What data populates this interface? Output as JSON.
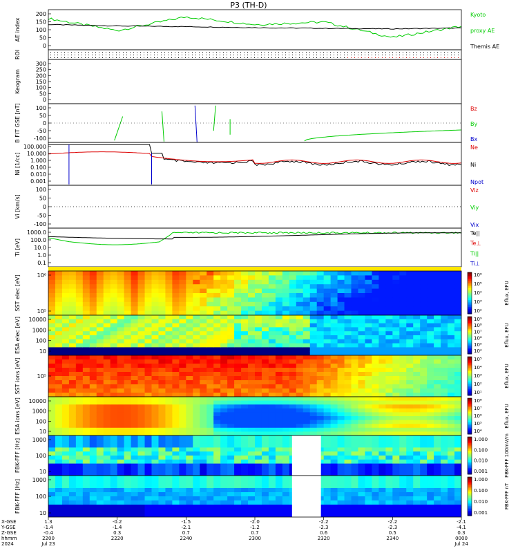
{
  "title": "P3 (TH-D)",
  "colors": {
    "black": "#000000",
    "green": "#00cc00",
    "red": "#dd0000",
    "blue": "#0000cc"
  },
  "panels": [
    {
      "id": "ae",
      "ylabel": "AE index",
      "yticks": [
        "200",
        "150",
        "100",
        "50",
        "0"
      ],
      "legend": [
        {
          "text": "Kyoto",
          "color": "#00cc00"
        },
        {
          "text": "proxy AE",
          "color": "#00cc00"
        },
        {
          "text": "Themis AE",
          "color": "#000000"
        }
      ]
    },
    {
      "id": "roi",
      "ylabel": "ROI",
      "yticks": [],
      "legend": []
    },
    {
      "id": "keogram",
      "ylabel": "Keogram",
      "yticks": [
        "300",
        "250",
        "200",
        "150",
        "100",
        "50",
        "0"
      ],
      "legend": []
    },
    {
      "id": "bfit",
      "ylabel": "B FIT GSE [nT]",
      "yticks": [
        "100",
        "50",
        "0",
        "-50",
        "-100"
      ],
      "legend": [
        {
          "text": "Bz",
          "color": "#dd0000"
        },
        {
          "text": "By",
          "color": "#00cc00"
        },
        {
          "text": "Bx",
          "color": "#0000cc"
        }
      ]
    },
    {
      "id": "ni",
      "ylabel": "Ni [1/cc]",
      "yticks": [
        "100.000",
        "10.000",
        "1.000",
        "0.100",
        "0.010",
        "0.001"
      ],
      "legend": [
        {
          "text": "Ne",
          "color": "#dd0000"
        },
        {
          "text": "Ni",
          "color": "#000000"
        },
        {
          "text": "Npot",
          "color": "#0000cc"
        }
      ]
    },
    {
      "id": "vi",
      "ylabel": "Vi [km/s]",
      "yticks": [
        "100",
        "50",
        "0",
        "-50",
        "-100"
      ],
      "legend": [
        {
          "text": "Viz",
          "color": "#dd0000"
        },
        {
          "text": "Viy",
          "color": "#00cc00"
        },
        {
          "text": "Vix",
          "color": "#0000cc"
        }
      ]
    },
    {
      "id": "ti",
      "ylabel": "Ti [eV]",
      "yticks": [
        "1000.0",
        "100.0",
        "10.0",
        "1.0",
        "0.1"
      ],
      "legend": [
        {
          "text": "Te||",
          "color": "#000000"
        },
        {
          "text": "Te⊥",
          "color": "#dd0000"
        },
        {
          "text": "Ti||",
          "color": "#00cc00"
        },
        {
          "text": "Ti⊥",
          "color": "#0000cc"
        }
      ]
    },
    {
      "id": "sst_e",
      "ylabel": "SST elec [eV]",
      "yticks": [
        "10⁶",
        "10⁵"
      ],
      "cbar_label": "Eflux, EFU",
      "cbar_ticks": [
        "10⁶",
        "10⁵",
        "10⁴",
        "10³",
        "10²"
      ]
    },
    {
      "id": "esa_e",
      "ylabel": "ESA elec [eV]",
      "yticks": [
        "10000",
        "1000",
        "100",
        "10"
      ],
      "cbar_label": "Eflux, EFU",
      "cbar_ticks": [
        "10⁹",
        "10⁸",
        "10⁷",
        "10⁶",
        "10⁵",
        "10⁴"
      ]
    },
    {
      "id": "sst_i",
      "ylabel": "SST ions [eV]",
      "yticks": [
        "10⁵"
      ],
      "cbar_label": "Eflux, EFU",
      "cbar_ticks": [
        "10⁵",
        "10⁴",
        "10³",
        "10²",
        "10¹"
      ]
    },
    {
      "id": "esa_i",
      "ylabel": "ESA ions [eV]",
      "yticks": [
        "10000",
        "1000",
        "100",
        "10"
      ],
      "cbar_label": "Eflux, EFU",
      "cbar_ticks": [
        "10⁸",
        "10⁷",
        "10⁶",
        "10⁵",
        "10⁴"
      ]
    },
    {
      "id": "fbk_fff",
      "ylabel": "FBK-FFF [Hz]",
      "yticks": [
        "1000",
        "100",
        "10"
      ],
      "cbar_label": "FBK-FFF 100mV/m",
      "cbar_ticks": [
        "1.000",
        "0.100",
        "0.010",
        "0.001"
      ]
    },
    {
      "id": "fbk_ff2",
      "ylabel": "FBK-FFF [Hz]",
      "yticks": [
        "1000",
        "100",
        "10"
      ],
      "cbar_label": "FBK-FFF nT",
      "cbar_ticks": [
        "1.000",
        "0.100",
        "0.010",
        "0.001"
      ]
    }
  ],
  "xaxis": {
    "row_labels": [
      "X-GSE",
      "Y-GSE",
      "Z-GSE",
      "hhmm",
      "2024"
    ],
    "ticks": [
      {
        "x": "1.3",
        "y": "-1.4",
        "z": "-0.4",
        "t": "2200",
        "d": "Jul 23"
      },
      {
        "x": "-0.2",
        "y": "-1.4",
        "z": "0.3",
        "t": "2220",
        "d": ""
      },
      {
        "x": "-1.5",
        "y": "-2.1",
        "z": "0.7",
        "t": "2240",
        "d": ""
      },
      {
        "x": "-2.0",
        "y": "-1.2",
        "z": "0.7",
        "t": "2300",
        "d": ""
      },
      {
        "x": "-2.2",
        "y": "-2.3",
        "z": "0.6",
        "t": "2320",
        "d": ""
      },
      {
        "x": "-2.2",
        "y": "-2.3",
        "z": "0.5",
        "t": "2340",
        "d": ""
      },
      {
        "x": "-2.1",
        "y": "-4.1",
        "z": "0.3",
        "t": "0000",
        "d": "Jul 24"
      }
    ]
  },
  "chart_data": {
    "type": "line",
    "title": "P3 (TH-D)",
    "x": [
      "2200",
      "2220",
      "2240",
      "2300",
      "2320",
      "2340",
      "0000"
    ],
    "series": [
      {
        "name": "Kyoto proxy AE",
        "values": [
          165,
          95,
          175,
          130,
          145,
          55,
          120
        ]
      },
      {
        "name": "Themis AE",
        "values": [
          130,
          122,
          118,
          112,
          108,
          105,
          110
        ]
      }
    ],
    "ylabel": "AE index",
    "ylim": [
      0,
      200
    ]
  }
}
